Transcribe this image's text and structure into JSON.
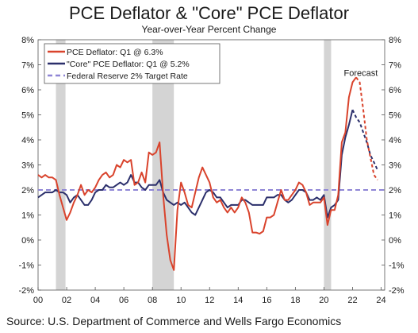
{
  "chart_data": {
    "type": "line",
    "title": "PCE Deflator & \"Core\" PCE Deflator",
    "subtitle": "Year-over-Year Percent Change",
    "source": "Source: U.S. Department of Commerce and Wells Fargo Economics",
    "annotation": "Forecast",
    "x_tick_labels": [
      "00",
      "02",
      "04",
      "06",
      "08",
      "10",
      "12",
      "14",
      "16",
      "18",
      "20",
      "22",
      "24"
    ],
    "x_ticks": [
      2000,
      2002,
      2004,
      2006,
      2008,
      2010,
      2012,
      2014,
      2016,
      2018,
      2020,
      2022,
      2024
    ],
    "xlim": [
      2000,
      2024.25
    ],
    "y_ticks": [
      -2,
      -1,
      0,
      1,
      2,
      3,
      4,
      5,
      6,
      7,
      8
    ],
    "y_tick_labels": [
      "-2%",
      "-1%",
      "0%",
      "1%",
      "2%",
      "3%",
      "4%",
      "5%",
      "6%",
      "7%",
      "8%"
    ],
    "ylim": [
      -2,
      8
    ],
    "forecast_start": 2022.25,
    "recessions": [
      [
        2001.25,
        2001.92
      ],
      [
        2008.0,
        2009.5
      ],
      [
        2020.0,
        2020.5
      ]
    ],
    "grid": false,
    "legend_position": "top-left",
    "colors": {
      "pce": "#d9432c",
      "core": "#2b2f6b",
      "target": "#8f86d6",
      "recession": "#d4d4d4"
    },
    "series": [
      {
        "name": "PCE Deflator: Q1 @ 6.3%",
        "color": "#d9432c",
        "points": [
          [
            2000,
            2.6
          ],
          [
            2000.25,
            2.5
          ],
          [
            2000.5,
            2.6
          ],
          [
            2000.75,
            2.5
          ],
          [
            2001,
            2.5
          ],
          [
            2001.25,
            2.4
          ],
          [
            2001.5,
            1.8
          ],
          [
            2001.75,
            1.3
          ],
          [
            2002,
            0.8
          ],
          [
            2002.25,
            1.1
          ],
          [
            2002.5,
            1.5
          ],
          [
            2002.75,
            1.8
          ],
          [
            2003,
            2.2
          ],
          [
            2003.25,
            1.8
          ],
          [
            2003.5,
            2.0
          ],
          [
            2003.75,
            1.9
          ],
          [
            2004,
            2.1
          ],
          [
            2004.25,
            2.4
          ],
          [
            2004.5,
            2.6
          ],
          [
            2004.75,
            2.7
          ],
          [
            2005,
            2.5
          ],
          [
            2005.25,
            2.6
          ],
          [
            2005.5,
            3.0
          ],
          [
            2005.75,
            2.9
          ],
          [
            2006,
            3.2
          ],
          [
            2006.25,
            3.1
          ],
          [
            2006.5,
            3.2
          ],
          [
            2006.75,
            2.2
          ],
          [
            2007,
            2.3
          ],
          [
            2007.25,
            2.7
          ],
          [
            2007.5,
            2.3
          ],
          [
            2007.75,
            3.5
          ],
          [
            2008,
            3.4
          ],
          [
            2008.25,
            3.5
          ],
          [
            2008.5,
            3.9
          ],
          [
            2008.75,
            1.8
          ],
          [
            2009,
            0.2
          ],
          [
            2009.25,
            -0.8
          ],
          [
            2009.5,
            -1.2
          ],
          [
            2009.75,
            1.2
          ],
          [
            2010,
            2.3
          ],
          [
            2010.25,
            1.9
          ],
          [
            2010.5,
            1.4
          ],
          [
            2010.75,
            1.3
          ],
          [
            2011,
            1.9
          ],
          [
            2011.25,
            2.5
          ],
          [
            2011.5,
            2.9
          ],
          [
            2011.75,
            2.6
          ],
          [
            2012,
            2.3
          ],
          [
            2012.25,
            1.7
          ],
          [
            2012.5,
            1.5
          ],
          [
            2012.75,
            1.6
          ],
          [
            2013,
            1.3
          ],
          [
            2013.25,
            1.1
          ],
          [
            2013.5,
            1.3
          ],
          [
            2013.75,
            1.1
          ],
          [
            2014,
            1.3
          ],
          [
            2014.25,
            1.7
          ],
          [
            2014.5,
            1.5
          ],
          [
            2014.75,
            1.1
          ],
          [
            2015,
            0.3
          ],
          [
            2015.25,
            0.3
          ],
          [
            2015.5,
            0.25
          ],
          [
            2015.75,
            0.35
          ],
          [
            2016,
            0.9
          ],
          [
            2016.25,
            0.9
          ],
          [
            2016.5,
            1.0
          ],
          [
            2016.75,
            1.5
          ],
          [
            2017,
            2.0
          ],
          [
            2017.25,
            1.6
          ],
          [
            2017.5,
            1.6
          ],
          [
            2017.75,
            1.8
          ],
          [
            2018,
            2.0
          ],
          [
            2018.25,
            2.3
          ],
          [
            2018.5,
            2.2
          ],
          [
            2018.75,
            1.9
          ],
          [
            2019,
            1.4
          ],
          [
            2019.25,
            1.5
          ],
          [
            2019.5,
            1.5
          ],
          [
            2019.75,
            1.5
          ],
          [
            2020,
            1.7
          ],
          [
            2020.25,
            0.6
          ],
          [
            2020.5,
            1.2
          ],
          [
            2020.75,
            1.2
          ],
          [
            2021,
            1.8
          ],
          [
            2021.25,
            3.9
          ],
          [
            2021.5,
            4.3
          ],
          [
            2021.75,
            5.7
          ],
          [
            2022,
            6.3
          ],
          [
            2022.25,
            6.5
          ]
        ],
        "forecast_points": [
          [
            2022.25,
            6.5
          ],
          [
            2022.5,
            6.3
          ],
          [
            2022.75,
            5.2
          ],
          [
            2023,
            4.0
          ],
          [
            2023.25,
            3.3
          ],
          [
            2023.5,
            2.6
          ],
          [
            2023.75,
            2.4
          ]
        ]
      },
      {
        "name": "\"Core\" PCE Deflator: Q1 @ 5.2%",
        "color": "#2b2f6b",
        "points": [
          [
            2000,
            1.7
          ],
          [
            2000.25,
            1.8
          ],
          [
            2000.5,
            1.9
          ],
          [
            2000.75,
            1.9
          ],
          [
            2001,
            1.9
          ],
          [
            2001.25,
            2.0
          ],
          [
            2001.5,
            1.9
          ],
          [
            2001.75,
            1.9
          ],
          [
            2002,
            1.8
          ],
          [
            2002.25,
            1.5
          ],
          [
            2002.5,
            1.7
          ],
          [
            2002.75,
            1.8
          ],
          [
            2003,
            1.6
          ],
          [
            2003.25,
            1.4
          ],
          [
            2003.5,
            1.4
          ],
          [
            2003.75,
            1.6
          ],
          [
            2004,
            1.9
          ],
          [
            2004.25,
            2.0
          ],
          [
            2004.5,
            2.0
          ],
          [
            2004.75,
            2.2
          ],
          [
            2005,
            2.1
          ],
          [
            2005.25,
            2.1
          ],
          [
            2005.5,
            2.2
          ],
          [
            2005.75,
            2.3
          ],
          [
            2006,
            2.2
          ],
          [
            2006.25,
            2.3
          ],
          [
            2006.5,
            2.6
          ],
          [
            2006.75,
            2.3
          ],
          [
            2007,
            2.3
          ],
          [
            2007.25,
            2.1
          ],
          [
            2007.5,
            2.0
          ],
          [
            2007.75,
            2.2
          ],
          [
            2008,
            2.2
          ],
          [
            2008.25,
            2.2
          ],
          [
            2008.5,
            2.4
          ],
          [
            2008.75,
            1.9
          ],
          [
            2009,
            1.6
          ],
          [
            2009.25,
            1.5
          ],
          [
            2009.5,
            1.4
          ],
          [
            2009.75,
            1.5
          ],
          [
            2010,
            1.4
          ],
          [
            2010.25,
            1.5
          ],
          [
            2010.5,
            1.3
          ],
          [
            2010.75,
            1.1
          ],
          [
            2011,
            1.0
          ],
          [
            2011.25,
            1.3
          ],
          [
            2011.5,
            1.6
          ],
          [
            2011.75,
            1.9
          ],
          [
            2012,
            2.0
          ],
          [
            2012.25,
            1.9
          ],
          [
            2012.5,
            1.7
          ],
          [
            2012.75,
            1.7
          ],
          [
            2013,
            1.5
          ],
          [
            2013.25,
            1.3
          ],
          [
            2013.5,
            1.4
          ],
          [
            2013.75,
            1.4
          ],
          [
            2014,
            1.4
          ],
          [
            2014.25,
            1.6
          ],
          [
            2014.5,
            1.6
          ],
          [
            2014.75,
            1.5
          ],
          [
            2015,
            1.4
          ],
          [
            2015.25,
            1.4
          ],
          [
            2015.5,
            1.4
          ],
          [
            2015.75,
            1.4
          ],
          [
            2016,
            1.7
          ],
          [
            2016.25,
            1.7
          ],
          [
            2016.5,
            1.7
          ],
          [
            2016.75,
            1.8
          ],
          [
            2017,
            1.8
          ],
          [
            2017.25,
            1.6
          ],
          [
            2017.5,
            1.5
          ],
          [
            2017.75,
            1.6
          ],
          [
            2018,
            1.8
          ],
          [
            2018.25,
            2.0
          ],
          [
            2018.5,
            2.0
          ],
          [
            2018.75,
            1.9
          ],
          [
            2019,
            1.6
          ],
          [
            2019.25,
            1.6
          ],
          [
            2019.5,
            1.7
          ],
          [
            2019.75,
            1.6
          ],
          [
            2020,
            1.8
          ],
          [
            2020.25,
            0.9
          ],
          [
            2020.5,
            1.3
          ],
          [
            2020.75,
            1.4
          ],
          [
            2021,
            1.6
          ],
          [
            2021.25,
            3.4
          ],
          [
            2021.5,
            4.1
          ],
          [
            2021.75,
            4.6
          ],
          [
            2022,
            5.2
          ]
        ],
        "forecast_points": [
          [
            2022,
            5.2
          ],
          [
            2022.25,
            4.9
          ],
          [
            2022.5,
            4.7
          ],
          [
            2022.75,
            4.3
          ],
          [
            2023,
            3.9
          ],
          [
            2023.25,
            3.4
          ],
          [
            2023.5,
            3.1
          ],
          [
            2023.75,
            2.8
          ]
        ]
      },
      {
        "name": "Federal Reserve 2% Target Rate",
        "color": "#8f86d6",
        "constant": 2
      }
    ]
  }
}
